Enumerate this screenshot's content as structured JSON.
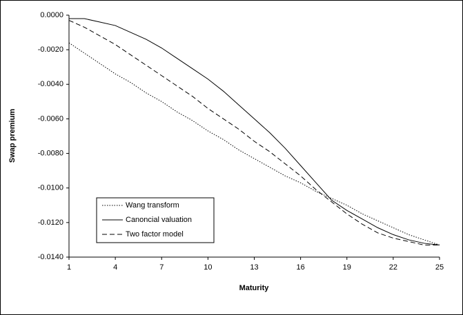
{
  "chart_data": {
    "type": "line",
    "x_label": "Maturity",
    "y_label": "Swap premium",
    "x": [
      1,
      2,
      3,
      4,
      5,
      6,
      7,
      8,
      9,
      10,
      11,
      12,
      13,
      14,
      15,
      16,
      17,
      18,
      19,
      20,
      21,
      22,
      23,
      24,
      25
    ],
    "xlim": [
      1,
      25
    ],
    "xticks": [
      1,
      4,
      7,
      10,
      13,
      16,
      19,
      22,
      25
    ],
    "ylim": [
      -0.014,
      0
    ],
    "yticks": [
      {
        "value": -0.014,
        "label": "-0.0140"
      },
      {
        "value": -0.012,
        "label": "-0.0120"
      },
      {
        "value": -0.01,
        "label": "-0.0100"
      },
      {
        "value": -0.008,
        "label": "-0.0080"
      },
      {
        "value": -0.006,
        "label": "-0.0060"
      },
      {
        "value": -0.004,
        "label": "-0.0040"
      },
      {
        "value": -0.002,
        "label": "-0.0020"
      },
      {
        "value": 0,
        "label": "0.0000"
      }
    ],
    "grid": false,
    "legend": "lower left",
    "series": [
      {
        "name": "Wang transform",
        "color": "#000000",
        "dash": "dotted",
        "values": [
          -0.0016,
          -0.0022,
          -0.0028,
          -0.0034,
          -0.0039,
          -0.0045,
          -0.005,
          -0.0056,
          -0.0061,
          -0.0067,
          -0.0072,
          -0.0078,
          -0.0083,
          -0.0088,
          -0.0093,
          -0.0097,
          -0.0102,
          -0.0106,
          -0.011,
          -0.0115,
          -0.0119,
          -0.0123,
          -0.0127,
          -0.013,
          -0.0133
        ]
      },
      {
        "name": "Canoncial valuation",
        "color": "#000000",
        "dash": "solid",
        "values": [
          -0.0002,
          -0.0002,
          -0.0004,
          -0.0006,
          -0.001,
          -0.0014,
          -0.0019,
          -0.0025,
          -0.0031,
          -0.0037,
          -0.0044,
          -0.0052,
          -0.006,
          -0.0068,
          -0.0077,
          -0.0087,
          -0.0097,
          -0.0107,
          -0.0113,
          -0.0118,
          -0.0123,
          -0.0127,
          -0.013,
          -0.0132,
          -0.0133
        ]
      },
      {
        "name": "Two factor model",
        "color": "#000000",
        "dash": "dashed",
        "values": [
          -0.0003,
          -0.0007,
          -0.0012,
          -0.0017,
          -0.0023,
          -0.0029,
          -0.0035,
          -0.0041,
          -0.0047,
          -0.0054,
          -0.006,
          -0.0066,
          -0.0073,
          -0.0079,
          -0.0086,
          -0.0093,
          -0.0101,
          -0.0108,
          -0.0115,
          -0.0121,
          -0.0126,
          -0.0129,
          -0.0131,
          -0.0133,
          -0.0133
        ]
      }
    ]
  }
}
